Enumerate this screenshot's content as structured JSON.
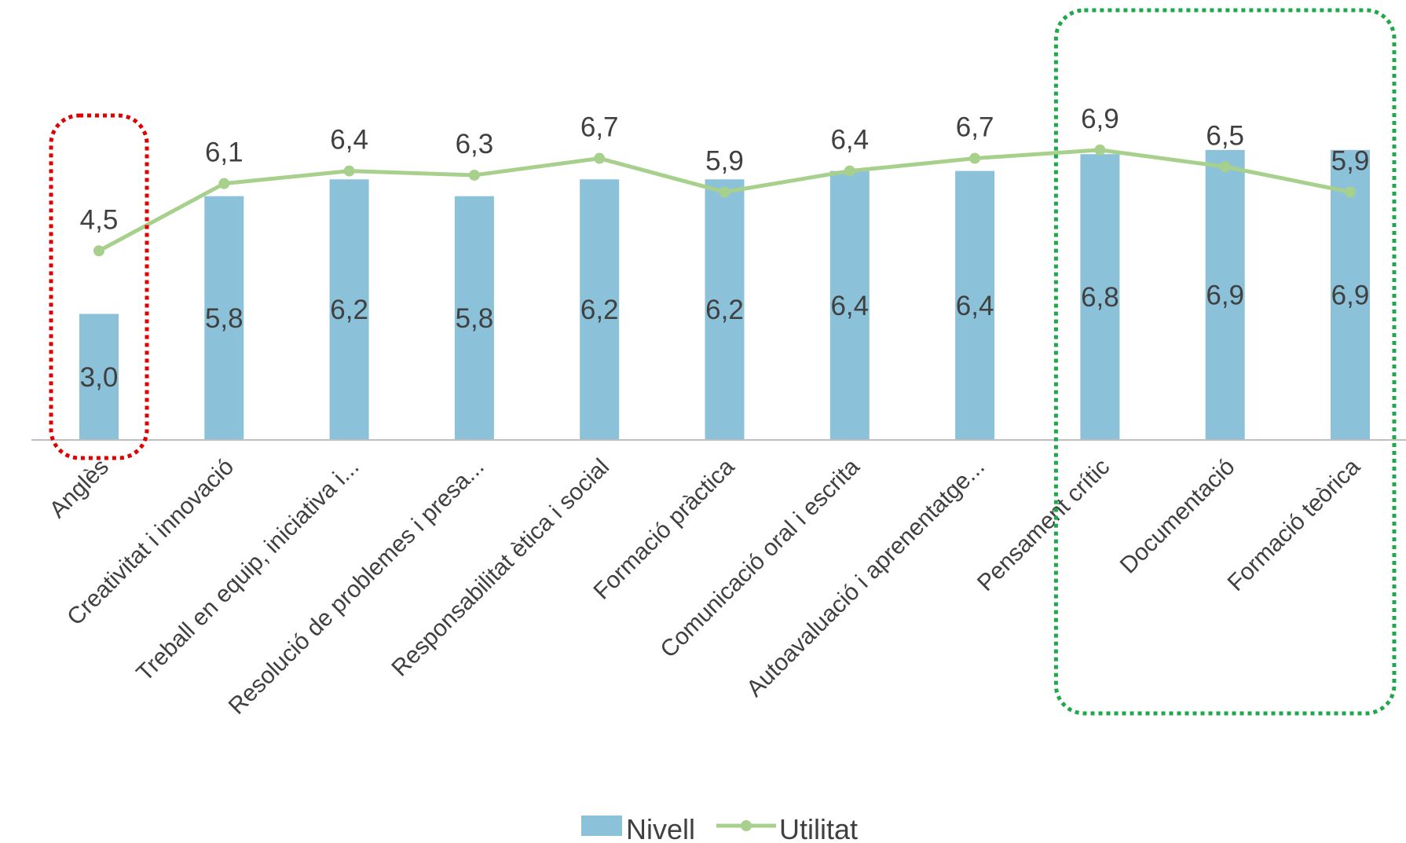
{
  "chart_data": {
    "type": "bar",
    "categories": [
      "Anglès",
      "Creativitat i innovació",
      "Treball en equip, iniciativa i...",
      "Resolució de problemes i presa...",
      "Responsabilitat ètica i social",
      "Formació pràctica",
      "Comunicació oral i escrita",
      "Autoavaluació i aprenentatge...",
      "Pensament crític",
      "Documentació",
      "Formació teòrica"
    ],
    "series": [
      {
        "name": "Nivell",
        "type": "bar",
        "color": "#8cc2d9",
        "values": [
          3.0,
          5.8,
          6.2,
          5.8,
          6.2,
          6.2,
          6.4,
          6.4,
          6.8,
          6.9,
          6.9
        ],
        "labels": [
          "3,0",
          "5,8",
          "6,2",
          "5,8",
          "6,2",
          "6,2",
          "6,4",
          "6,4",
          "6,8",
          "6,9",
          "6,9"
        ]
      },
      {
        "name": "Utilitat",
        "type": "line",
        "color": "#a8d08d",
        "values": [
          4.5,
          6.1,
          6.4,
          6.3,
          6.7,
          5.9,
          6.4,
          6.7,
          6.9,
          6.5,
          5.9
        ],
        "labels": [
          "4,5",
          "6,1",
          "6,4",
          "6,3",
          "6,7",
          "5,9",
          "6,4",
          "6,7",
          "6,9",
          "6,5",
          "5,9"
        ]
      }
    ],
    "ylim": [
      0,
      9
    ],
    "grid": false,
    "legend": "bottom-center",
    "highlights": [
      {
        "categories": [
          "Anglès"
        ],
        "color": "#e00000",
        "style": "dotted"
      },
      {
        "categories": [
          "Pensament crític",
          "Documentació",
          "Formació teòrica"
        ],
        "color": "#1fa84a",
        "style": "dotted"
      }
    ]
  }
}
